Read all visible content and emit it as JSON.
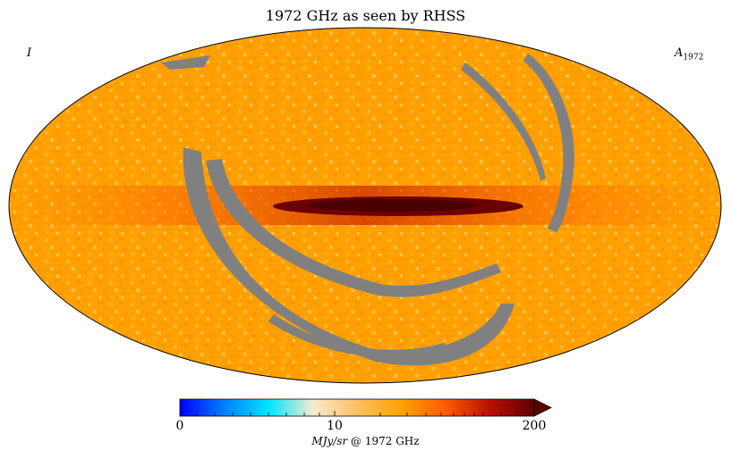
{
  "title": "1972 GHz as seen by RHSS",
  "stokes_label": "I",
  "component_label": {
    "base": "A",
    "sub": "1972"
  },
  "colorbar": {
    "ticks": [
      "0",
      "10",
      "200"
    ],
    "unit_italic": "MJy/sr",
    "unit_rest": " @ 1972 GHz",
    "colors": [
      "#0000ff",
      "#0080ff",
      "#00e5ff",
      "#f5ecd0",
      "#ffc060",
      "#ffa200",
      "#ff5a00",
      "#b81000",
      "#5e0000"
    ],
    "extend": "max"
  },
  "map": {
    "projection": "mollweide",
    "background_color": "#ffa000",
    "masked_color": "#808080",
    "galactic_plane_color": "#6b0000"
  }
}
